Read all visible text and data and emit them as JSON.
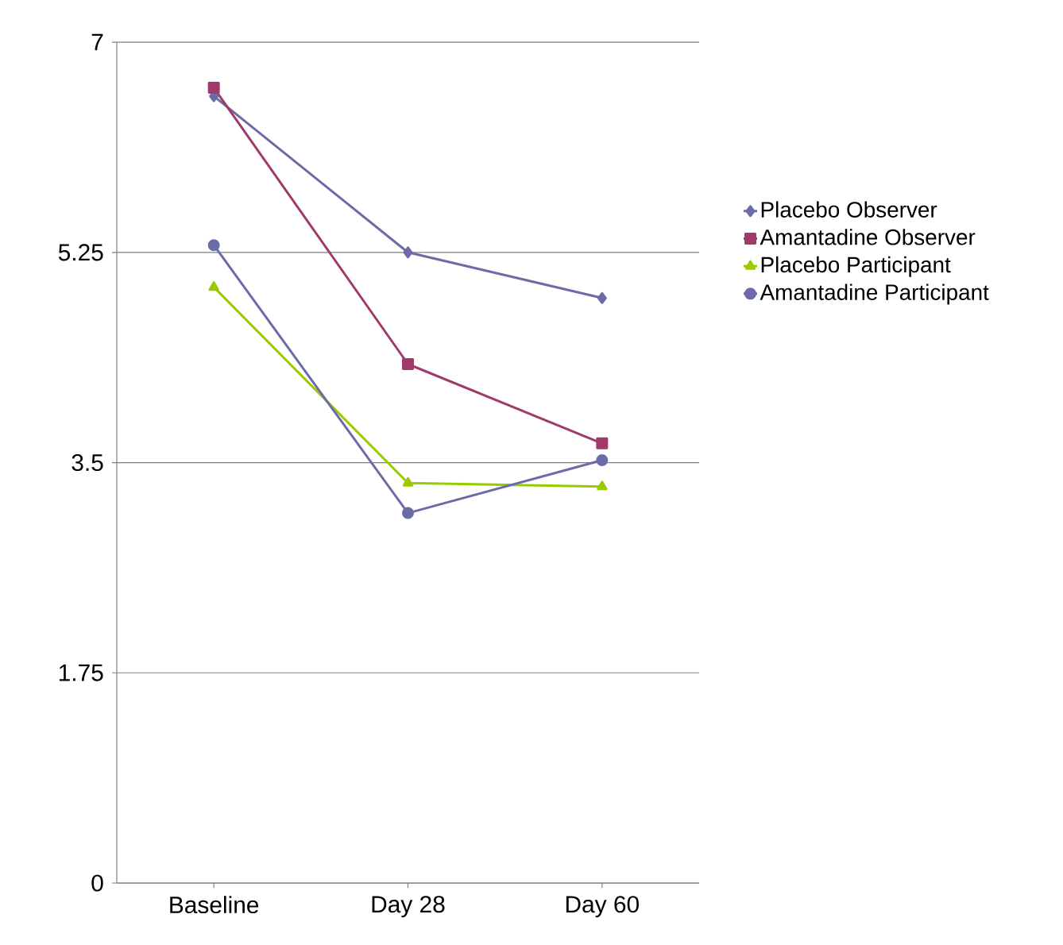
{
  "chart_data": {
    "type": "line",
    "categories": [
      "Baseline",
      "Day 28",
      "Day 60"
    ],
    "series": [
      {
        "name": "Placebo Observer",
        "color": "#6b6ba8",
        "marker": "diamond",
        "values": [
          6.55,
          5.25,
          4.87
        ]
      },
      {
        "name": "Amantadine Observer",
        "color": "#a03a6a",
        "marker": "square",
        "values": [
          6.62,
          4.32,
          3.66
        ]
      },
      {
        "name": "Placebo Participant",
        "color": "#99cc00",
        "marker": "triangle",
        "values": [
          4.96,
          3.33,
          3.3
        ]
      },
      {
        "name": "Amantadine Participant",
        "color": "#6b6ba8",
        "marker": "circle",
        "values": [
          5.31,
          3.08,
          3.52
        ]
      }
    ],
    "ylim": [
      0,
      7
    ],
    "yticks": [
      0,
      1.75,
      3.5,
      5.25,
      7
    ],
    "grid": "y",
    "legend": "right",
    "line_style": "solid"
  }
}
